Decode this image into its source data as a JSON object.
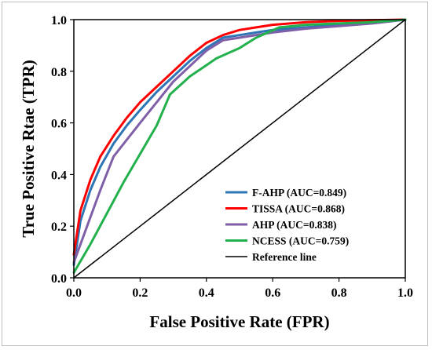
{
  "chart_data": {
    "type": "line",
    "xlabel": "False Positive Rate (FPR)",
    "ylabel": "True Positive Rtae (TPR)",
    "xlim": [
      0,
      1
    ],
    "ylim": [
      0,
      1
    ],
    "xticks": [
      "0.0",
      "0.2",
      "0.4",
      "0.6",
      "0.8",
      "1.0"
    ],
    "yticks": [
      "0.0",
      "0.2",
      "0.4",
      "0.6",
      "0.8",
      "1.0"
    ],
    "grid": false,
    "legend_position": "bottom-right",
    "series": [
      {
        "name": "F-AHP (AUC=0.849)",
        "color": "#2e75b6",
        "x": [
          0,
          0.02,
          0.05,
          0.08,
          0.12,
          0.16,
          0.2,
          0.25,
          0.3,
          0.35,
          0.4,
          0.45,
          0.5,
          0.55,
          0.6,
          0.7,
          0.8,
          0.9,
          1.0
        ],
        "y": [
          0.05,
          0.22,
          0.34,
          0.43,
          0.52,
          0.59,
          0.65,
          0.72,
          0.78,
          0.84,
          0.89,
          0.93,
          0.94,
          0.95,
          0.96,
          0.97,
          0.98,
          0.99,
          1.0
        ]
      },
      {
        "name": "TISSA (AUC=0.868)",
        "color": "#ff0000",
        "x": [
          0,
          0.02,
          0.05,
          0.08,
          0.12,
          0.16,
          0.2,
          0.25,
          0.3,
          0.35,
          0.4,
          0.45,
          0.5,
          0.55,
          0.6,
          0.7,
          0.8,
          0.9,
          1.0
        ],
        "y": [
          0.09,
          0.26,
          0.38,
          0.47,
          0.55,
          0.62,
          0.68,
          0.74,
          0.8,
          0.86,
          0.91,
          0.94,
          0.96,
          0.97,
          0.98,
          0.99,
          0.995,
          0.998,
          1.0
        ]
      },
      {
        "name": "AHP (AUC=0.838)",
        "color": "#7f5fa8",
        "x": [
          0,
          0.04,
          0.08,
          0.12,
          0.2,
          0.3,
          0.4,
          0.45,
          0.5,
          0.55,
          0.6,
          0.7,
          0.8,
          0.9,
          1.0
        ],
        "y": [
          0.06,
          0.2,
          0.34,
          0.47,
          0.6,
          0.76,
          0.88,
          0.92,
          0.93,
          0.94,
          0.95,
          0.965,
          0.975,
          0.985,
          1.0
        ]
      },
      {
        "name": "NCESS (AUC=0.759)",
        "color": "#22b14c",
        "x": [
          0,
          0.05,
          0.1,
          0.15,
          0.2,
          0.25,
          0.29,
          0.35,
          0.43,
          0.5,
          0.55,
          0.62,
          0.7,
          0.8,
          0.9,
          1.0
        ],
        "y": [
          0.02,
          0.13,
          0.25,
          0.37,
          0.48,
          0.59,
          0.71,
          0.78,
          0.85,
          0.89,
          0.93,
          0.97,
          0.98,
          0.985,
          0.99,
          1.0
        ]
      },
      {
        "name": "Reference line",
        "color": "#000000",
        "x": [
          0,
          1
        ],
        "y": [
          0,
          1
        ]
      }
    ]
  }
}
